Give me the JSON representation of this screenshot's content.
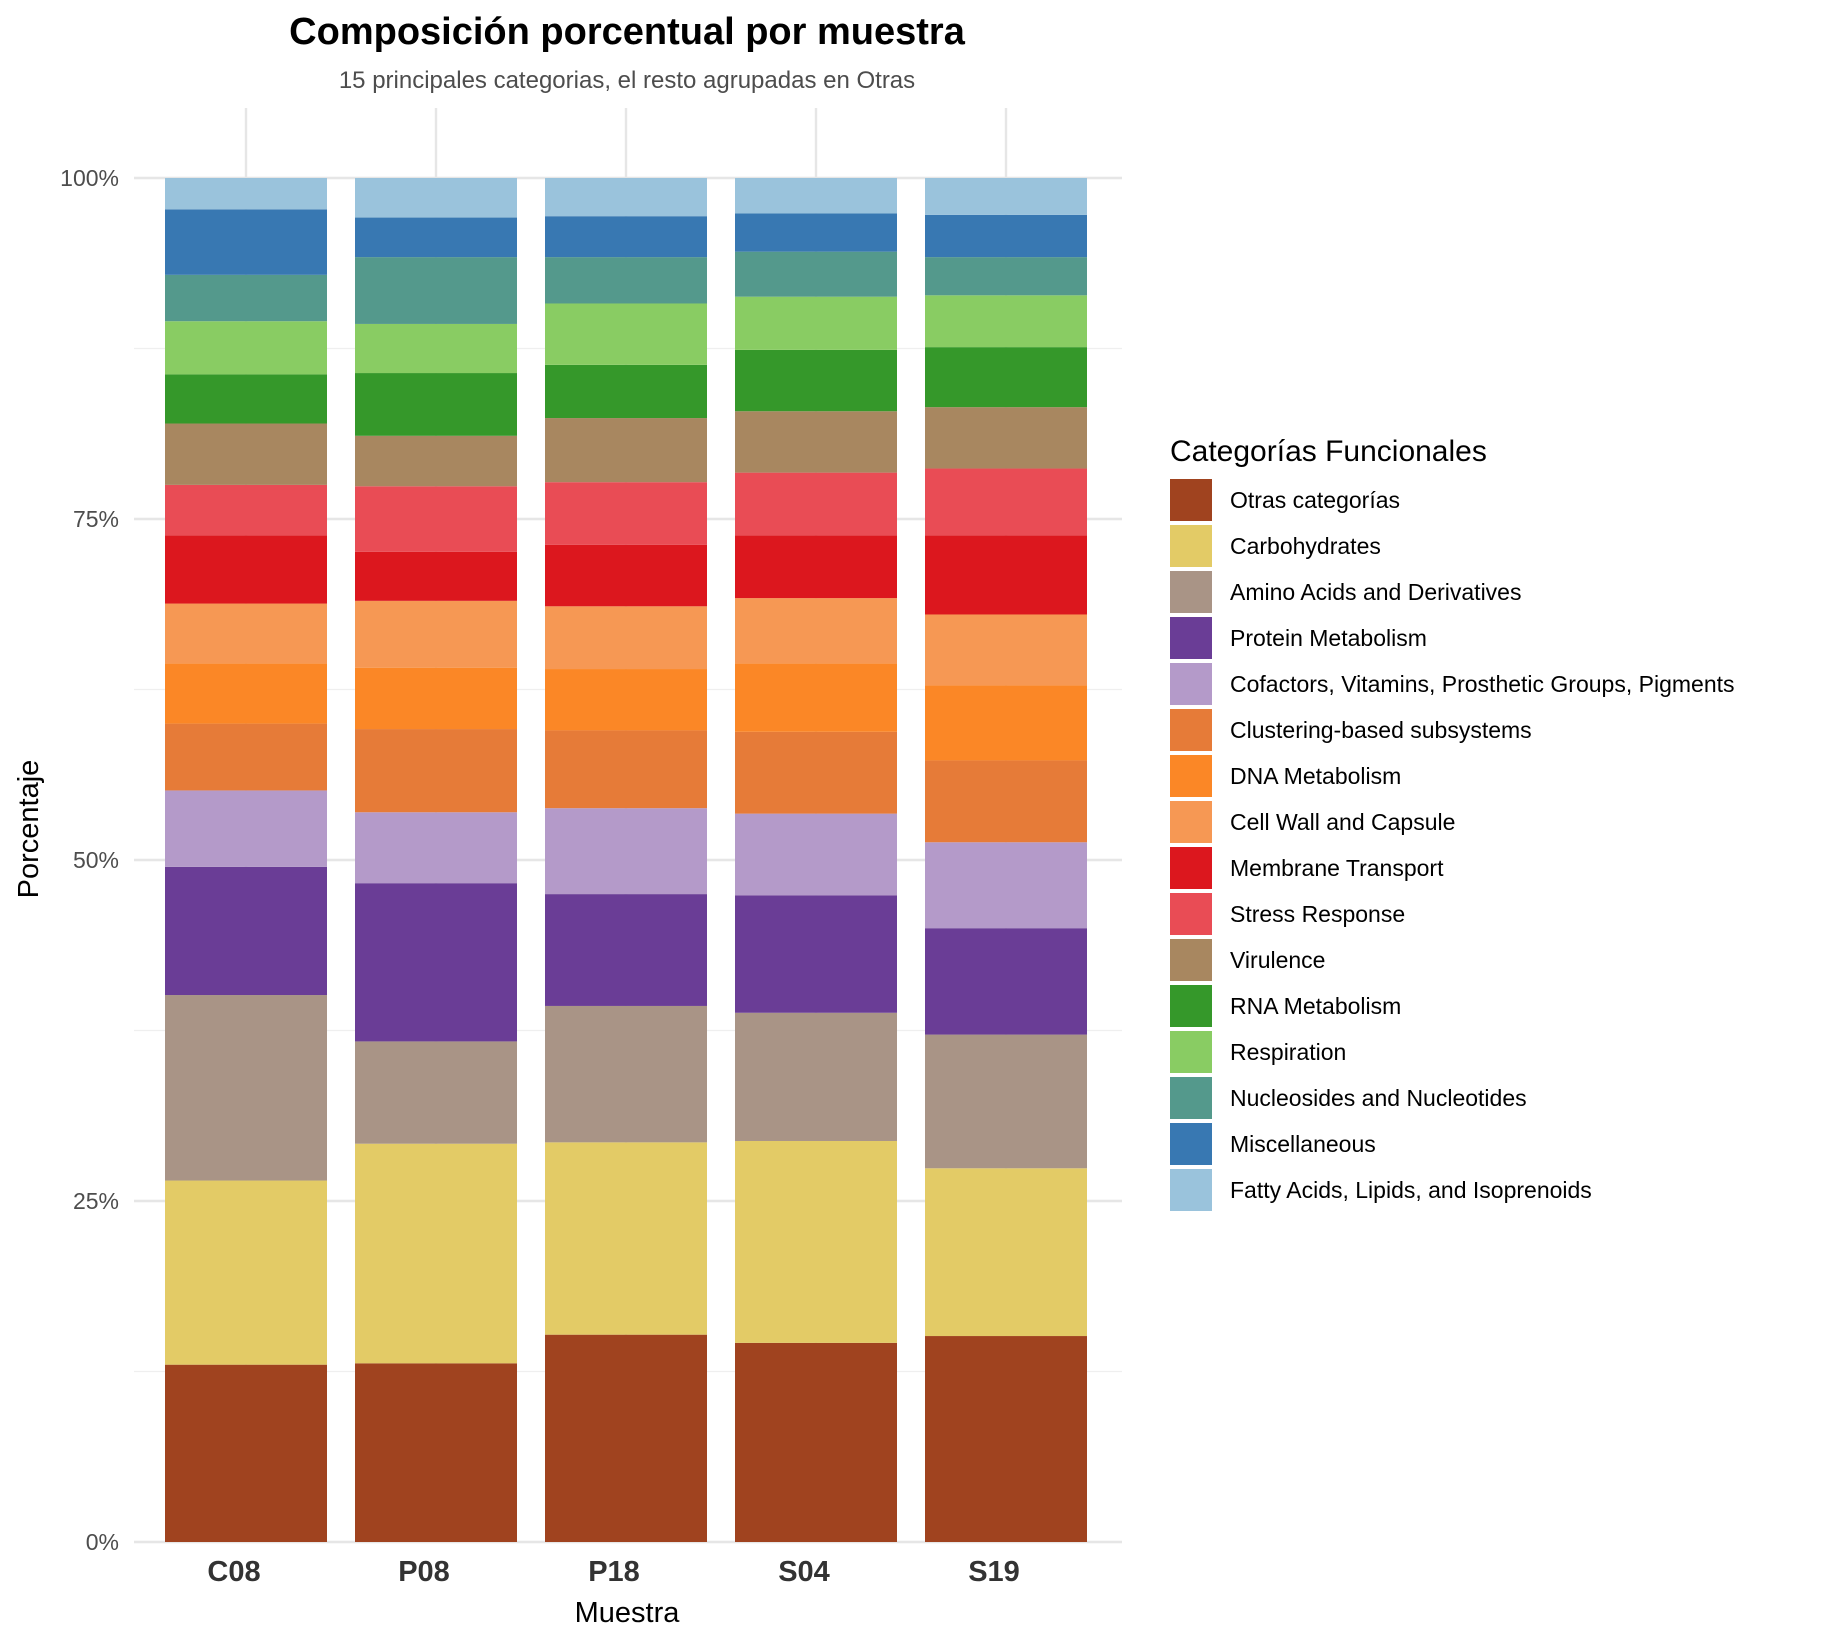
{
  "chart_data": {
    "type": "bar",
    "stacked": true,
    "title": "Composición porcentual por muestra",
    "subtitle": "15 principales categorias, el resto agrupadas en Otras",
    "xlabel": "Muestra",
    "ylabel": "Porcentaje",
    "ylim": [
      0,
      100
    ],
    "y_ticks": [
      "0%",
      "25%",
      "50%",
      "75%",
      "100%"
    ],
    "y_tick_values": [
      0,
      25,
      50,
      75,
      100
    ],
    "grid": true,
    "legend_title": "Categorías Funcionales",
    "legend_position": "right",
    "categories": [
      "C08",
      "P08",
      "P18",
      "S04",
      "S19"
    ],
    "series": [
      {
        "name": "Otras categorías",
        "color": "#A0431F",
        "values": [
          13.0,
          13.1,
          15.2,
          14.6,
          15.1
        ]
      },
      {
        "name": "Carbohydrates",
        "color": "#E3CB66",
        "values": [
          13.5,
          16.1,
          14.1,
          14.8,
          12.3
        ]
      },
      {
        "name": "Amino Acids and Derivatives",
        "color": "#A99486",
        "values": [
          13.6,
          7.5,
          10.0,
          9.4,
          9.8
        ]
      },
      {
        "name": "Protein Metabolism",
        "color": "#6A3D96",
        "values": [
          9.4,
          11.6,
          8.2,
          8.6,
          7.8
        ]
      },
      {
        "name": "Cofactors, Vitamins, Prosthetic Groups, Pigments",
        "color": "#B49AC9",
        "values": [
          5.6,
          5.2,
          6.3,
          6.0,
          6.3
        ]
      },
      {
        "name": "Clustering-based subsystems",
        "color": "#E67B38",
        "values": [
          4.9,
          6.1,
          5.7,
          6.0,
          6.0
        ]
      },
      {
        "name": "DNA Metabolism",
        "color": "#FB8726",
        "values": [
          4.4,
          4.5,
          4.5,
          5.0,
          5.5
        ]
      },
      {
        "name": "Cell Wall and Capsule",
        "color": "#F69854",
        "values": [
          4.4,
          4.9,
          4.6,
          4.8,
          5.2
        ]
      },
      {
        "name": "Membrane Transport",
        "color": "#DC171E",
        "values": [
          5.0,
          3.6,
          4.5,
          4.6,
          5.8
        ]
      },
      {
        "name": "Stress Response",
        "color": "#E94C55",
        "values": [
          3.7,
          4.8,
          4.6,
          4.6,
          4.9
        ]
      },
      {
        "name": "Virulence",
        "color": "#A88760",
        "values": [
          4.5,
          3.7,
          4.7,
          4.5,
          4.5
        ]
      },
      {
        "name": "RNA Metabolism",
        "color": "#35982A",
        "values": [
          3.6,
          4.6,
          3.9,
          4.5,
          4.4
        ]
      },
      {
        "name": "Respiration",
        "color": "#89CC63",
        "values": [
          3.9,
          3.6,
          4.5,
          3.9,
          3.8
        ]
      },
      {
        "name": "Nucleosides and Nucleotides",
        "color": "#54998C",
        "values": [
          3.4,
          4.9,
          3.4,
          3.3,
          2.8
        ]
      },
      {
        "name": "Miscellaneous",
        "color": "#3878B2",
        "values": [
          4.8,
          2.9,
          3.0,
          2.8,
          3.1
        ]
      },
      {
        "name": "Fatty Acids, Lipids, and Isoprenoids",
        "color": "#9AC3DC",
        "values": [
          2.3,
          2.9,
          2.8,
          2.6,
          2.7
        ]
      }
    ]
  }
}
